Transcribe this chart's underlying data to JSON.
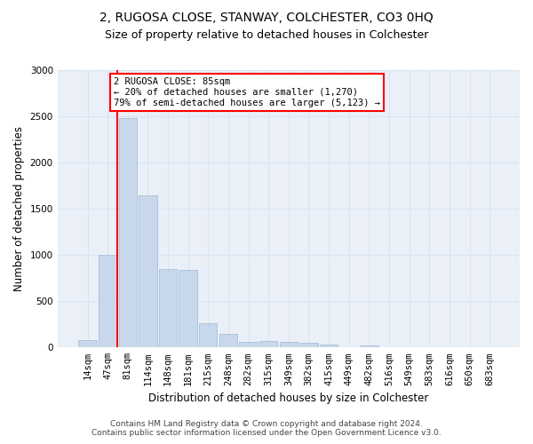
{
  "title": "2, RUGOSA CLOSE, STANWAY, COLCHESTER, CO3 0HQ",
  "subtitle": "Size of property relative to detached houses in Colchester",
  "xlabel": "Distribution of detached houses by size in Colchester",
  "ylabel": "Number of detached properties",
  "footer_line1": "Contains HM Land Registry data © Crown copyright and database right 2024.",
  "footer_line2": "Contains public sector information licensed under the Open Government Licence v3.0.",
  "bar_labels": [
    "14sqm",
    "47sqm",
    "81sqm",
    "114sqm",
    "148sqm",
    "181sqm",
    "215sqm",
    "248sqm",
    "282sqm",
    "315sqm",
    "349sqm",
    "382sqm",
    "415sqm",
    "449sqm",
    "482sqm",
    "516sqm",
    "549sqm",
    "583sqm",
    "616sqm",
    "650sqm",
    "683sqm"
  ],
  "bar_values": [
    75,
    1000,
    2480,
    1650,
    850,
    840,
    265,
    150,
    60,
    70,
    60,
    50,
    30,
    0,
    25,
    0,
    0,
    0,
    0,
    0,
    0
  ],
  "bar_color": "#c8d8ec",
  "bar_edge_color": "#a8c0d8",
  "vline_color": "red",
  "vline_x_index": 2,
  "annotation_text": "2 RUGOSA CLOSE: 85sqm\n← 20% of detached houses are smaller (1,270)\n79% of semi-detached houses are larger (5,123) →",
  "annotation_box_color": "white",
  "annotation_box_edge_color": "red",
  "ylim": [
    0,
    3000
  ],
  "yticks": [
    0,
    500,
    1000,
    1500,
    2000,
    2500,
    3000
  ],
  "grid_color": "#d8e4f0",
  "bg_color": "#eaeff8",
  "title_fontsize": 10,
  "subtitle_fontsize": 9,
  "xlabel_fontsize": 8.5,
  "ylabel_fontsize": 8.5,
  "tick_fontsize": 7.5,
  "footer_fontsize": 6.5
}
